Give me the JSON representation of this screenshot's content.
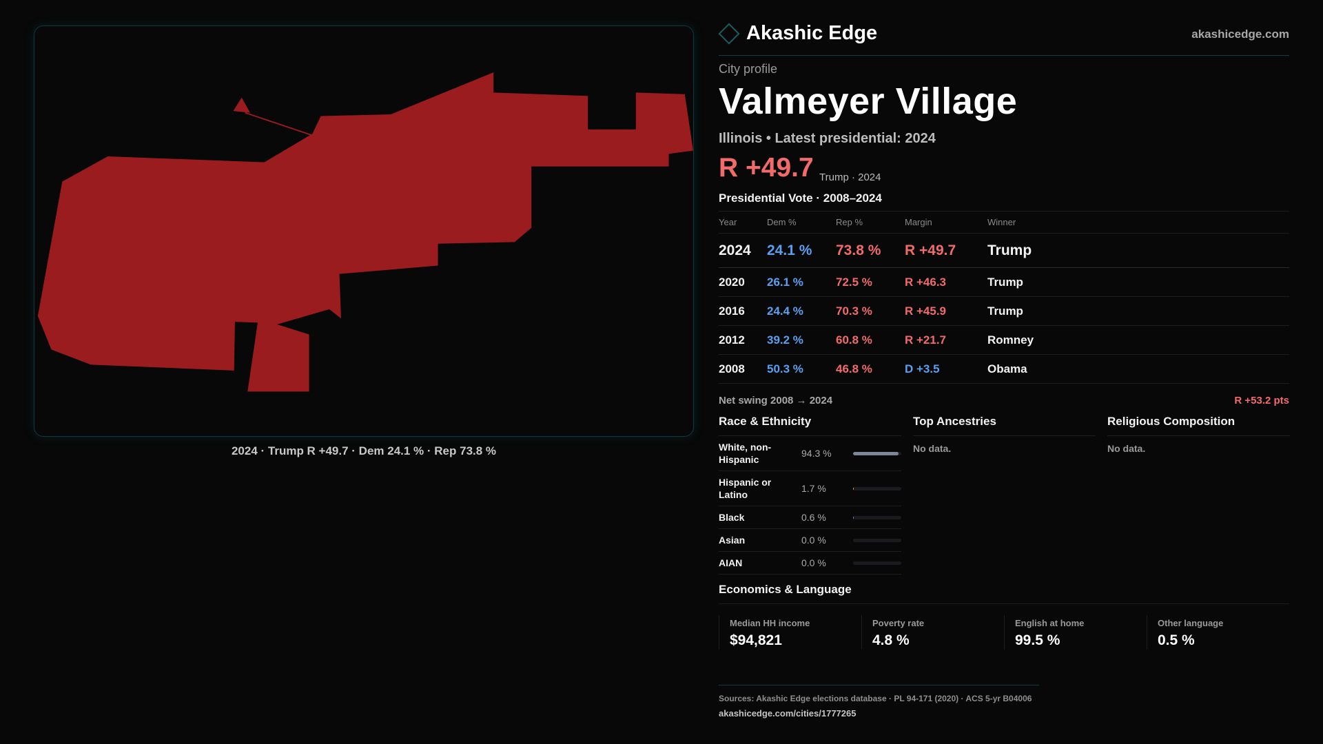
{
  "map": {
    "fill": "#9b1c1f",
    "caption": "2024 · Trump R +49.7 · Dem 24.1 % · Rep 73.8 %"
  },
  "brand": {
    "name": "Akashic Edge",
    "site": "akashicedge.com",
    "logo_icon": "diamond-outline-icon"
  },
  "profile": {
    "kicker": "City profile",
    "title": "Valmeyer Village",
    "subtitle": "Illinois • Latest presidential: 2024",
    "margin": "R +49.7",
    "margin_sub": "Trump · 2024"
  },
  "votes": {
    "title": "Presidential Vote · 2008–2024",
    "headers": [
      "Year",
      "Dem %",
      "Rep %",
      "Margin",
      "Winner"
    ],
    "rows": [
      {
        "year": "2024",
        "dem": "24.1 %",
        "rep": "73.8 %",
        "margin": "R +49.7",
        "party": "rep",
        "winner": "Trump"
      },
      {
        "year": "2020",
        "dem": "26.1 %",
        "rep": "72.5 %",
        "margin": "R +46.3",
        "party": "rep",
        "winner": "Trump"
      },
      {
        "year": "2016",
        "dem": "24.4 %",
        "rep": "70.3 %",
        "margin": "R +45.9",
        "party": "rep",
        "winner": "Trump"
      },
      {
        "year": "2012",
        "dem": "39.2 %",
        "rep": "60.8 %",
        "margin": "R +21.7",
        "party": "rep",
        "winner": "Romney"
      },
      {
        "year": "2008",
        "dem": "50.3 %",
        "rep": "46.8 %",
        "margin": "D +3.5",
        "party": "dem",
        "winner": "Obama"
      }
    ],
    "swing_label": "Net swing 2008 → 2024",
    "swing_value": "R +53.2 pts"
  },
  "race": {
    "title": "Race & Ethnicity",
    "rows": [
      {
        "name": "White, non-Hispanic",
        "value": "94.3 %",
        "pct": 94.3,
        "color": "#7d8797"
      },
      {
        "name": "Hispanic or Latino",
        "value": "1.7 %",
        "pct": 1.7,
        "color": "#e0a030"
      },
      {
        "name": "Black",
        "value": "0.6 %",
        "pct": 0.6,
        "color": "#8a7de0"
      },
      {
        "name": "Asian",
        "value": "0.0 %",
        "pct": 0,
        "color": "#5aa0f0"
      },
      {
        "name": "AIAN",
        "value": "0.0 %",
        "pct": 0,
        "color": "#5aa0f0"
      }
    ]
  },
  "ancestries": {
    "title": "Top Ancestries",
    "empty": "No data."
  },
  "religion": {
    "title": "Religious Composition",
    "empty": "No data."
  },
  "econ": {
    "title": "Economics & Language",
    "stats": [
      {
        "label": "Median HH income",
        "value": "$94,821"
      },
      {
        "label": "Poverty rate",
        "value": "4.8 %"
      },
      {
        "label": "English at home",
        "value": "99.5 %"
      },
      {
        "label": "Other language",
        "value": "0.5 %"
      }
    ]
  },
  "footer": {
    "sources": "Sources: Akashic Edge elections database · PL 94-171 (2020) · ACS 5-yr B04006",
    "url": "akashicedge.com/cities/1777265"
  }
}
